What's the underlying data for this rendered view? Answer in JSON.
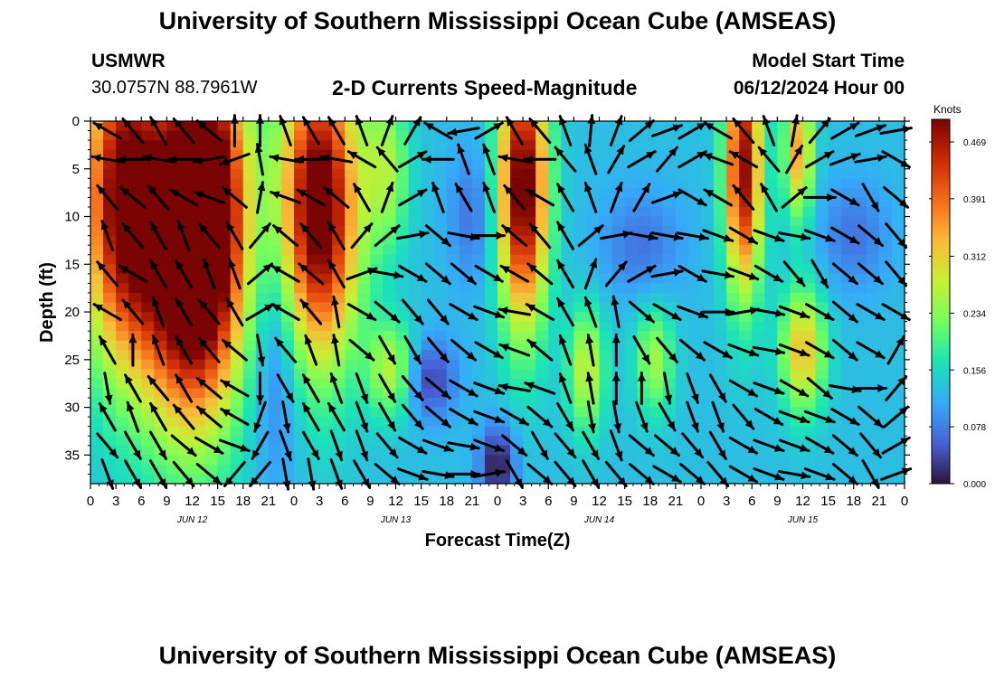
{
  "header": {
    "title": "University of Southern Mississippi Ocean Cube (AMSEAS)",
    "station": "USMWR",
    "coords": "30.0757N  88.7961W",
    "subtitle": "2-D Currents Speed-Magnitude",
    "start_label": "Model Start Time",
    "start_value": "06/12/2024 Hour 00"
  },
  "footer": {
    "title": "University of Southern Mississippi Ocean Cube (AMSEAS)"
  },
  "chart_data": {
    "type": "heatmap",
    "title": "2-D Currents Speed-Magnitude",
    "xlabel": "Forecast Time(Z)",
    "ylabel": "Depth (ft)",
    "xlim": [
      0,
      96
    ],
    "ylim": [
      38,
      0
    ],
    "x_ticks": [
      0,
      3,
      6,
      9,
      12,
      15,
      18,
      21,
      24,
      27,
      30,
      33,
      36,
      39,
      42,
      45,
      48,
      51,
      54,
      57,
      60,
      63,
      66,
      69,
      72,
      75,
      78,
      81,
      84,
      87,
      90,
      93,
      96
    ],
    "x_tick_labels": [
      "0",
      "3",
      "6",
      "9",
      "12",
      "15",
      "18",
      "21",
      "0",
      "3",
      "6",
      "9",
      "12",
      "15",
      "18",
      "21",
      "0",
      "3",
      "6",
      "9",
      "12",
      "15",
      "18",
      "21",
      "0",
      "3",
      "6",
      "9",
      "12",
      "15",
      "18",
      "21",
      "0"
    ],
    "y_ticks": [
      0,
      5,
      10,
      15,
      20,
      25,
      30,
      35
    ],
    "y_tick_labels": [
      "0",
      "5",
      "10",
      "15",
      "20",
      "25",
      "30",
      "35"
    ],
    "day_labels": [
      {
        "label": "JUN 12",
        "hour": 12
      },
      {
        "label": "JUN 13",
        "hour": 36
      },
      {
        "label": "JUN 14",
        "hour": 60
      },
      {
        "label": "JUN 15",
        "hour": 84
      }
    ],
    "colorbar": {
      "unit_label": "Knots",
      "min": 0.0,
      "max": 0.5,
      "ticks": [
        0.0,
        0.078,
        0.156,
        0.234,
        0.312,
        0.391,
        0.469
      ],
      "tick_labels": [
        "0.000",
        "0.078",
        "0.156",
        "0.234",
        "0.312",
        "0.391",
        "0.469"
      ],
      "colormap": [
        "#30123b",
        "#4662d7",
        "#36aaf9",
        "#1ae4b6",
        "#72fe5e",
        "#c8ef34",
        "#faba39",
        "#f66b19",
        "#cb2a04",
        "#7a0403"
      ]
    },
    "speed_features": [
      {
        "t": 4,
        "d": 8,
        "st": 3.5,
        "sd": 12,
        "amp": 0.38
      },
      {
        "t": 12,
        "d": 15,
        "st": 4,
        "sd": 12,
        "amp": 0.45
      },
      {
        "t": 14,
        "d": 5,
        "st": 3,
        "sd": 10,
        "amp": 0.25
      },
      {
        "t": 27,
        "d": 9,
        "st": 3.2,
        "sd": 11,
        "amp": 0.42
      },
      {
        "t": 35,
        "d": 5,
        "st": 1.8,
        "sd": 6,
        "amp": 0.12
      },
      {
        "t": 35.5,
        "d": 26,
        "st": 2,
        "sd": 3.5,
        "amp": 0.14
      },
      {
        "t": 51,
        "d": 7,
        "st": 2,
        "sd": 10,
        "amp": 0.4
      },
      {
        "t": 58.5,
        "d": 26,
        "st": 1.5,
        "sd": 4.5,
        "amp": 0.15
      },
      {
        "t": 66.5,
        "d": 25,
        "st": 1.6,
        "sd": 4,
        "amp": 0.12
      },
      {
        "t": 77,
        "d": 5,
        "st": 1.5,
        "sd": 9,
        "amp": 0.36
      },
      {
        "t": 83.5,
        "d": 3,
        "st": 1.2,
        "sd": 5,
        "amp": 0.22
      },
      {
        "t": 84,
        "d": 24,
        "st": 1.8,
        "sd": 4.5,
        "amp": 0.2
      },
      {
        "t": 40,
        "d": 27,
        "st": 2.2,
        "sd": 3,
        "amp": -0.1
      },
      {
        "t": 48,
        "d": 36,
        "st": 1.5,
        "sd": 3,
        "amp": -0.13
      },
      {
        "t": 22,
        "d": 25,
        "st": 2,
        "sd": 9,
        "amp": -0.07
      },
      {
        "t": 65,
        "d": 13,
        "st": 3.5,
        "sd": 4,
        "amp": -0.06
      },
      {
        "t": 90,
        "d": 12,
        "st": 3,
        "sd": 4,
        "amp": -0.06
      },
      {
        "t": 45,
        "d": 10,
        "st": 2,
        "sd": 5,
        "amp": -0.06
      }
    ],
    "vector_rows_depth": [
      1,
      4,
      8,
      12,
      16,
      20,
      24,
      28,
      31,
      34,
      37
    ],
    "vector_cols_hour": [
      2,
      5,
      8,
      11,
      14,
      17,
      20,
      23,
      26,
      29,
      32,
      35,
      38,
      41,
      44,
      47,
      50,
      53,
      56,
      59,
      62,
      65,
      68,
      71,
      74,
      77,
      80,
      83,
      86,
      89,
      92,
      95
    ],
    "vector_directions_deg": [
      [
        300,
        320,
        330,
        320,
        310,
        0,
        0,
        340,
        330,
        330,
        340,
        20,
        30,
        300,
        260,
        60,
        330,
        320,
        340,
        5,
        20,
        50,
        70,
        60,
        300,
        320,
        340,
        10,
        40,
        60,
        70,
        80
      ],
      [
        280,
        270,
        280,
        270,
        260,
        250,
        350,
        280,
        270,
        280,
        300,
        320,
        60,
        270,
        340,
        340,
        280,
        270,
        320,
        340,
        30,
        60,
        40,
        60,
        290,
        300,
        320,
        30,
        60,
        70,
        80,
        120
      ],
      [
        320,
        310,
        320,
        300,
        290,
        310,
        10,
        290,
        300,
        310,
        330,
        20,
        60,
        340,
        330,
        340,
        320,
        300,
        330,
        340,
        20,
        30,
        70,
        120,
        300,
        320,
        330,
        50,
        90,
        120,
        150,
        130
      ],
      [
        340,
        320,
        330,
        340,
        320,
        330,
        40,
        310,
        320,
        330,
        40,
        50,
        80,
        130,
        100,
        90,
        310,
        320,
        330,
        50,
        80,
        100,
        100,
        100,
        110,
        120,
        110,
        100,
        110,
        120,
        130,
        140
      ],
      [
        320,
        300,
        330,
        330,
        340,
        340,
        50,
        300,
        310,
        330,
        70,
        100,
        120,
        130,
        130,
        120,
        300,
        310,
        330,
        20,
        40,
        60,
        80,
        120,
        100,
        110,
        120,
        140,
        150,
        130,
        130,
        140
      ],
      [
        300,
        320,
        340,
        330,
        320,
        330,
        60,
        300,
        320,
        350,
        120,
        130,
        140,
        140,
        120,
        110,
        280,
        300,
        330,
        340,
        350,
        130,
        120,
        110,
        90,
        80,
        100,
        110,
        120,
        130,
        120,
        120
      ],
      [
        330,
        0,
        340,
        330,
        320,
        310,
        170,
        320,
        340,
        350,
        130,
        150,
        150,
        140,
        130,
        120,
        290,
        310,
        340,
        350,
        0,
        150,
        140,
        130,
        120,
        110,
        100,
        110,
        120,
        130,
        120,
        30
      ],
      [
        170,
        330,
        320,
        330,
        310,
        300,
        180,
        150,
        330,
        340,
        160,
        150,
        140,
        130,
        120,
        110,
        280,
        290,
        340,
        350,
        0,
        0,
        170,
        160,
        150,
        120,
        110,
        120,
        130,
        100,
        90,
        40
      ],
      [
        330,
        340,
        330,
        320,
        310,
        300,
        200,
        170,
        330,
        330,
        160,
        150,
        140,
        130,
        120,
        110,
        120,
        130,
        150,
        170,
        170,
        160,
        150,
        160,
        160,
        140,
        120,
        110,
        110,
        120,
        130,
        50
      ],
      [
        140,
        150,
        150,
        130,
        120,
        110,
        210,
        160,
        150,
        160,
        160,
        140,
        120,
        110,
        100,
        110,
        130,
        150,
        140,
        150,
        160,
        130,
        130,
        140,
        150,
        120,
        110,
        110,
        120,
        130,
        140,
        60
      ],
      [
        160,
        150,
        150,
        140,
        130,
        220,
        220,
        170,
        170,
        160,
        150,
        130,
        110,
        100,
        90,
        80,
        150,
        130,
        140,
        150,
        140,
        130,
        120,
        130,
        140,
        120,
        110,
        100,
        110,
        130,
        150,
        70
      ]
    ]
  }
}
